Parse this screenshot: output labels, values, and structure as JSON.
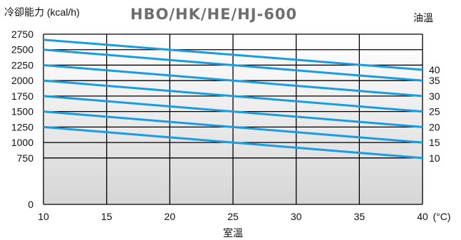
{
  "chart_data": {
    "type": "line",
    "title": "HBO/HK/HE/HJ-600",
    "ylabel": "冷卻能力 (kcal/h)",
    "xlabel": "室溫",
    "x_unit": "(°C)",
    "series_group_label": "油溫",
    "x": [
      10,
      40
    ],
    "xlim": [
      10,
      40
    ],
    "ylim": [
      0,
      2750
    ],
    "x_ticks": [
      10,
      15,
      20,
      25,
      30,
      35,
      40
    ],
    "y_ticks": [
      0,
      750,
      1000,
      1250,
      1500,
      1750,
      2000,
      2250,
      2500,
      2750
    ],
    "grid": true,
    "series": [
      {
        "name": "40",
        "values": [
          2660,
          2175
        ]
      },
      {
        "name": "35",
        "values": [
          2500,
          2000
        ]
      },
      {
        "name": "30",
        "values": [
          2250,
          1750
        ]
      },
      {
        "name": "25",
        "values": [
          2000,
          1500
        ]
      },
      {
        "name": "20",
        "values": [
          1750,
          1250
        ]
      },
      {
        "name": "15",
        "values": [
          1500,
          1000
        ]
      },
      {
        "name": "10",
        "values": [
          1250,
          750
        ]
      }
    ],
    "colors": {
      "line": "#1a9de0",
      "grid": "#000000",
      "gradient_top": "#ffffff",
      "gradient_bottom": "#d6d6d6"
    }
  }
}
